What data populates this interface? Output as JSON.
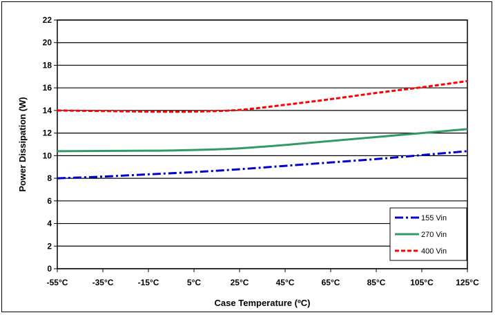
{
  "chart_data": {
    "type": "line",
    "title": "",
    "xlabel": "Case Temperature (ºC)",
    "ylabel": "Power Dissipation (W)",
    "x_ticks": [
      "-55°C",
      "-35°C",
      "-15°C",
      "5°C",
      "25°C",
      "45°C",
      "65°C",
      "85°C",
      "105°C",
      "125°C"
    ],
    "x_values": [
      -55,
      -35,
      -15,
      5,
      25,
      45,
      65,
      85,
      105,
      125
    ],
    "xlim": [
      -55,
      125
    ],
    "ylim": [
      0,
      22
    ],
    "y_ticks": [
      0,
      2,
      4,
      6,
      8,
      10,
      12,
      14,
      16,
      18,
      20,
      22
    ],
    "grid": "horizontal",
    "legend_position": "bottom-right",
    "series": [
      {
        "name": "155 Vin",
        "color": "#0000CC",
        "dash": "dash-dot",
        "x": [
          -55,
          -35,
          -15,
          5,
          25,
          45,
          65,
          85,
          105,
          125
        ],
        "y": [
          8.0,
          8.15,
          8.35,
          8.55,
          8.8,
          9.1,
          9.4,
          9.7,
          10.05,
          10.4
        ]
      },
      {
        "name": "270 Vin",
        "color": "#339966",
        "dash": "solid",
        "x": [
          -55,
          -35,
          -15,
          5,
          25,
          45,
          65,
          85,
          105,
          125
        ],
        "y": [
          10.4,
          10.42,
          10.44,
          10.5,
          10.65,
          10.95,
          11.3,
          11.65,
          12.0,
          12.35
        ]
      },
      {
        "name": "400 Vin",
        "color": "#FF0000",
        "dash": "dash",
        "x": [
          -55,
          -35,
          -15,
          5,
          25,
          45,
          65,
          85,
          105,
          125
        ],
        "y": [
          14.0,
          13.95,
          13.9,
          13.9,
          14.05,
          14.5,
          15.0,
          15.55,
          16.05,
          16.6
        ]
      }
    ]
  }
}
